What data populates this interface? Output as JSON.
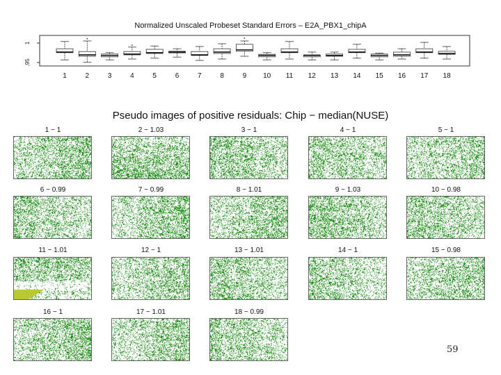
{
  "boxplot": {
    "title": "Normalized Unscaled Probeset Standard Errors –  E2A_PBX1_chipA",
    "y_ticks": [
      "1",
      ".95"
    ],
    "chart_data": {
      "type": "box",
      "categories": [
        "1",
        "2",
        "3",
        "4",
        "5",
        "6",
        "7",
        "8",
        "9",
        "10",
        "11",
        "12",
        "13",
        "14",
        "15",
        "16",
        "17",
        "18"
      ],
      "series": [
        {
          "q1": [
            0.998,
            0.985,
            0.983,
            0.99,
            0.995,
            0.997,
            0.988,
            0.995,
            1.003,
            0.983,
            0.998,
            0.983,
            0.985,
            0.998,
            0.983,
            0.985,
            0.998,
            0.992
          ],
          "median": [
            1.0,
            0.99,
            0.988,
            0.993,
            0.998,
            1.0,
            0.99,
            1.0,
            1.008,
            0.988,
            1.0,
            0.988,
            0.988,
            1.0,
            0.988,
            0.99,
            1.0,
            0.995
          ],
          "q3": [
            1.012,
            1.002,
            0.993,
            1.002,
            1.01,
            1.003,
            1.002,
            1.012,
            1.028,
            0.992,
            1.012,
            0.99,
            0.993,
            1.01,
            0.993,
            1.0,
            1.012,
            1.003
          ],
          "whisker_high": [
            1.038,
            1.04,
            0.998,
            1.018,
            1.022,
            1.012,
            1.02,
            1.03,
            1.04,
            0.998,
            1.038,
            1.0,
            1.0,
            1.028,
            0.996,
            1.012,
            1.035,
            1.02
          ],
          "whisker_low": [
            0.972,
            0.963,
            0.972,
            0.975,
            0.978,
            0.982,
            0.97,
            0.975,
            0.985,
            0.972,
            0.975,
            0.972,
            0.972,
            0.978,
            0.972,
            0.975,
            0.978,
            0.975
          ],
          "outlier_high": [
            null,
            1.048,
            null,
            1.025,
            null,
            null,
            null,
            null,
            1.05,
            null,
            null,
            null,
            null,
            null,
            null,
            null,
            null,
            null
          ]
        }
      ],
      "ylim": [
        0.95,
        1.06
      ]
    }
  },
  "pseudo_images": {
    "title": "Pseudo images of positive residuals: Chip − median(NUSE)",
    "panels": [
      {
        "label": "1 − 1",
        "density": 0.32,
        "dense_side": "right",
        "artifact": false
      },
      {
        "label": "2 − 1.03",
        "density": 0.34,
        "dense_side": "bottom",
        "artifact": false
      },
      {
        "label": "3 − 1",
        "density": 0.32,
        "dense_side": "left",
        "artifact": false
      },
      {
        "label": "4 − 1",
        "density": 0.3,
        "dense_side": "left",
        "artifact": false
      },
      {
        "label": "5 − 1",
        "density": 0.28,
        "dense_side": "right",
        "artifact": false
      },
      {
        "label": "6 − 0.99",
        "density": 0.3,
        "dense_side": "left",
        "artifact": false
      },
      {
        "label": "7 − 0.99",
        "density": 0.3,
        "dense_side": "right",
        "artifact": false
      },
      {
        "label": "8 − 1.01",
        "density": 0.3,
        "dense_side": "right",
        "artifact": false
      },
      {
        "label": "9 − 1.03",
        "density": 0.34,
        "dense_side": "left",
        "artifact": false
      },
      {
        "label": "10 − 0.98",
        "density": 0.32,
        "dense_side": "left",
        "artifact": false
      },
      {
        "label": "11 − 1.01",
        "density": 0.32,
        "dense_side": "top",
        "artifact": true
      },
      {
        "label": "12 − 1",
        "density": 0.28,
        "dense_side": "right",
        "artifact": false
      },
      {
        "label": "13 − 1.01",
        "density": 0.3,
        "dense_side": "left",
        "artifact": false
      },
      {
        "label": "14 − 1",
        "density": 0.28,
        "dense_side": "left",
        "artifact": false
      },
      {
        "label": "15 − 0.98",
        "density": 0.3,
        "dense_side": "right",
        "artifact": false
      },
      {
        "label": "16 − 1",
        "density": 0.32,
        "dense_side": "right",
        "artifact": false
      },
      {
        "label": "17 − 1.01",
        "density": 0.28,
        "dense_side": "right",
        "artifact": false
      },
      {
        "label": "18 − 0.99",
        "density": 0.3,
        "dense_side": "left",
        "artifact": false
      }
    ]
  },
  "colors": {
    "dot": "#1a8a12",
    "artifact": "#b8c832"
  },
  "slide_number": "59"
}
